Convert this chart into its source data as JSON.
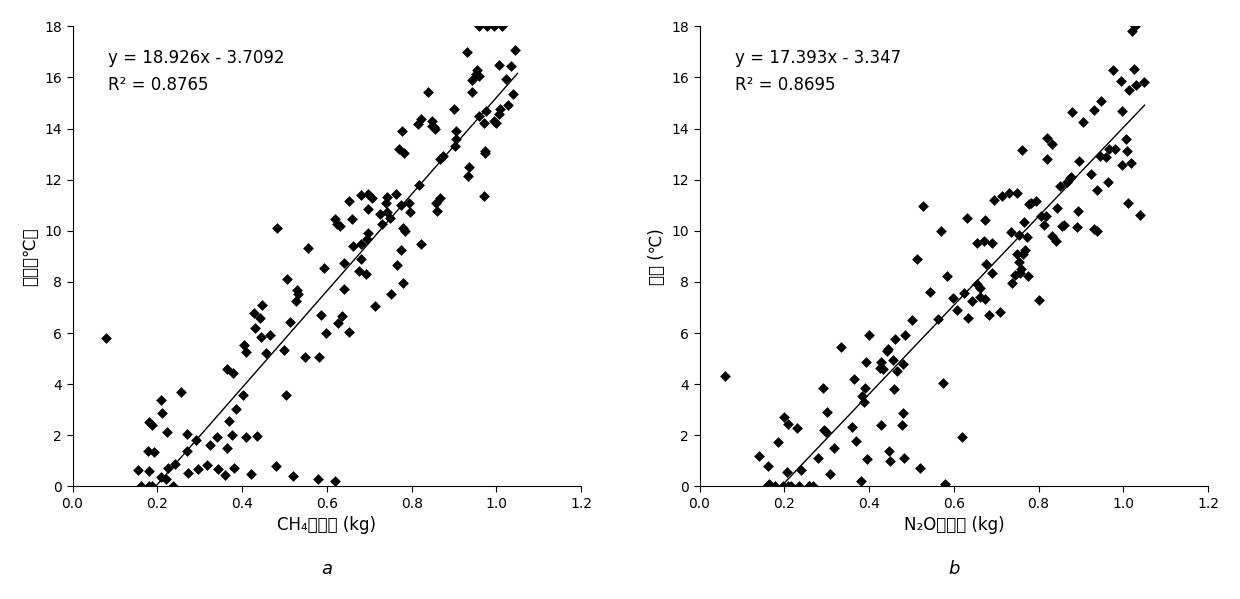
{
  "plot_a": {
    "slope": 18.926,
    "intercept": -3.7092,
    "r2": 0.8765,
    "equation": "y = 18.926x - 3.7092",
    "r2_label": "R² = 0.8765",
    "xlabel": "CH₄排放量 (kg)",
    "ylabel": "温度（℃）",
    "label": "a",
    "xlim": [
      0,
      1.2
    ],
    "ylim": [
      0,
      18
    ],
    "xticks": [
      0,
      0.2,
      0.4,
      0.6,
      0.8,
      1.0,
      1.2
    ],
    "yticks": [
      0,
      2,
      4,
      6,
      8,
      10,
      12,
      14,
      16,
      18
    ]
  },
  "plot_b": {
    "slope": 17.393,
    "intercept": -3.347,
    "r2": 0.8695,
    "equation": "y = 17.393x - 3.347",
    "r2_label": "R² = 0.8695",
    "xlabel": "N₂O排放量 (kg)",
    "ylabel": "温度 (℃)",
    "label": "b",
    "xlim": [
      0,
      1.2
    ],
    "ylim": [
      0,
      18
    ],
    "xticks": [
      0,
      0.2,
      0.4,
      0.6,
      0.8,
      1.0,
      1.2
    ],
    "yticks": [
      0,
      2,
      4,
      6,
      8,
      10,
      12,
      14,
      16,
      18
    ]
  },
  "scatter_color": "#000000",
  "line_color": "#000000",
  "background": "#ffffff",
  "marker_size": 30,
  "annotation_fontsize": 12,
  "axis_label_fontsize": 12,
  "tick_fontsize": 10,
  "sublabel_fontsize": 13
}
